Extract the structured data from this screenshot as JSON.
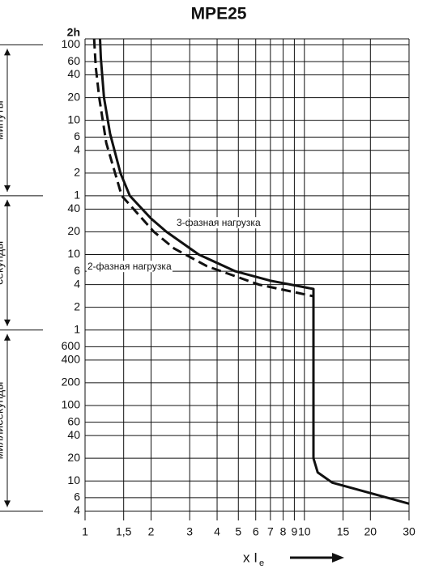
{
  "chart_data": {
    "type": "line",
    "title": "MPE25",
    "log_x": true,
    "log_y": true,
    "grid": true,
    "xlim": [
      1,
      30
    ],
    "xticks": [
      1,
      {
        "value": 1.5,
        "label": "1,5"
      },
      2,
      3,
      4,
      5,
      6,
      7,
      8,
      9,
      10,
      15,
      20,
      30
    ],
    "ylim": [
      0.003,
      7200
    ],
    "yticks": [
      {
        "value": 7200,
        "label": "2h"
      },
      {
        "value": 6000,
        "label": "100"
      },
      {
        "value": 3600,
        "label": "60"
      },
      {
        "value": 2400,
        "label": "40"
      },
      {
        "value": 1200,
        "label": "20"
      },
      {
        "value": 600,
        "label": "10"
      },
      {
        "value": 360,
        "label": "6"
      },
      {
        "value": 240,
        "label": "4"
      },
      {
        "value": 120,
        "label": "2"
      },
      {
        "value": 60,
        "label": "1"
      },
      40,
      20,
      10,
      6,
      4,
      2,
      1,
      {
        "value": 0.6,
        "label": "600"
      },
      {
        "value": 0.4,
        "label": "400"
      },
      {
        "value": 0.2,
        "label": "200"
      },
      {
        "value": 0.1,
        "label": "100"
      },
      {
        "value": 0.06,
        "label": "60"
      },
      {
        "value": 0.04,
        "label": "40"
      },
      {
        "value": 0.02,
        "label": "20"
      },
      {
        "value": 0.01,
        "label": "10"
      },
      {
        "value": 0.006,
        "label": "6"
      },
      {
        "value": 0.004,
        "label": "4"
      }
    ],
    "y_sections": [
      "минуты",
      "секунды",
      "миллисекунды"
    ],
    "x_label": "x I",
    "x_label_sub": "e",
    "series": [
      {
        "name": "3-фазная нагрузка",
        "color": "#111111",
        "dash": false,
        "x": [
          1.17,
          1.18,
          1.22,
          1.3,
          1.45,
          1.6,
          2.0,
          2.35,
          3.3,
          4.85,
          7,
          11,
          11,
          11.5,
          13.4,
          30
        ],
        "values": [
          7200,
          4000,
          1200,
          400,
          120,
          60,
          30,
          20,
          10,
          6,
          4.5,
          3.5,
          0.02,
          0.013,
          0.0095,
          0.005
        ]
      },
      {
        "name": "2-фазная нагрузка",
        "color": "#111111",
        "dash": true,
        "x": [
          1.1,
          1.12,
          1.16,
          1.25,
          1.47,
          2.06,
          2.55,
          3.6,
          6.2,
          11
        ],
        "values": [
          7200,
          3000,
          1200,
          300,
          60,
          20,
          12,
          7,
          4,
          2.8
        ]
      }
    ]
  }
}
